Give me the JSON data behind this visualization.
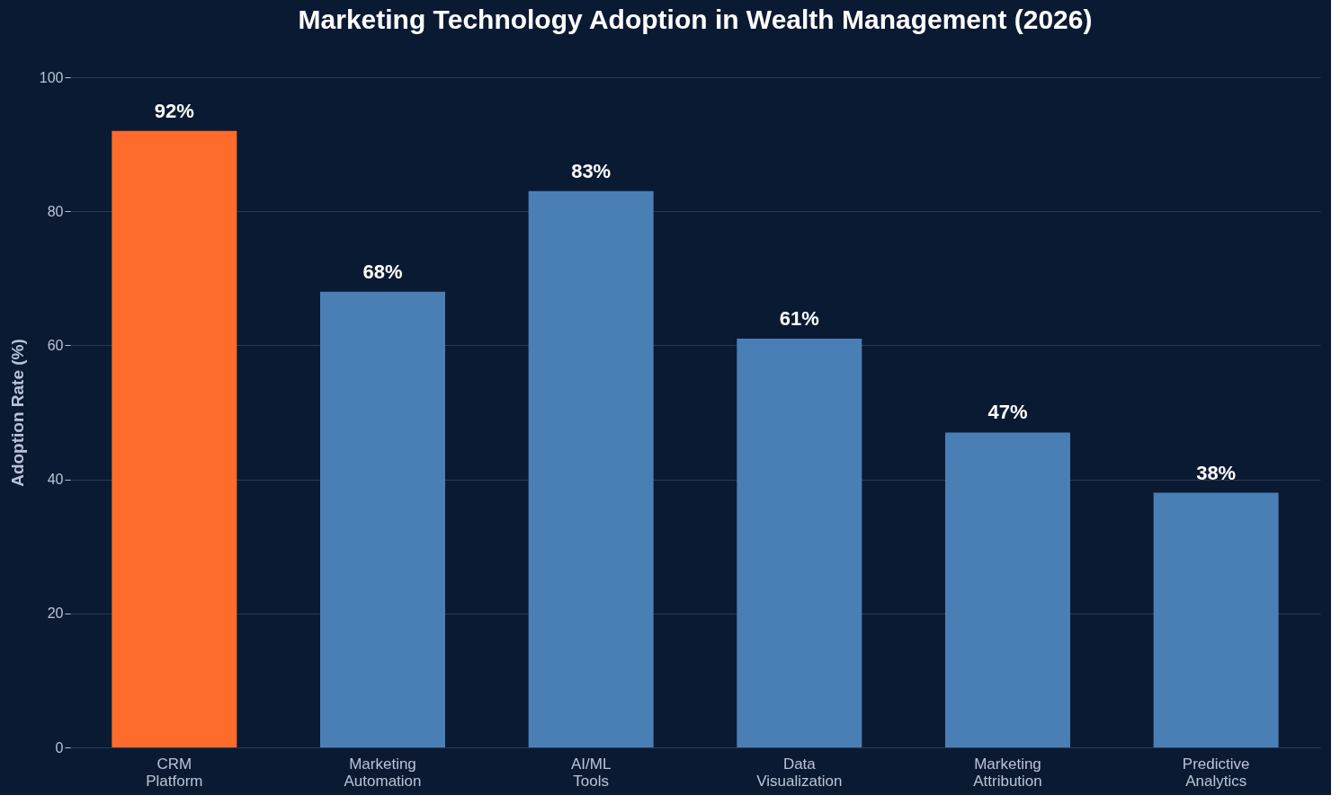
{
  "chart_data": {
    "type": "bar",
    "title": "Marketing Technology Adoption in Wealth Management (2026)",
    "ylabel": "Adoption Rate (%)",
    "categories": [
      "CRM Platform",
      "Marketing Automation",
      "AI/ML Tools",
      "Data Visualization",
      "Marketing Attribution",
      "Predictive Analytics"
    ],
    "values": [
      92,
      68,
      83,
      61,
      47,
      38
    ],
    "colors": [
      "#ff6b2b",
      "#4a7fb5",
      "#4a7fb5",
      "#4a7fb5",
      "#4a7fb5",
      "#4a7fb5"
    ],
    "value_labels": [
      "92%",
      "68%",
      "83%",
      "61%",
      "47%",
      "38%"
    ],
    "ylim": [
      0,
      100
    ],
    "yticks": [
      0,
      20,
      40,
      60,
      80,
      100
    ],
    "grid": "y"
  }
}
